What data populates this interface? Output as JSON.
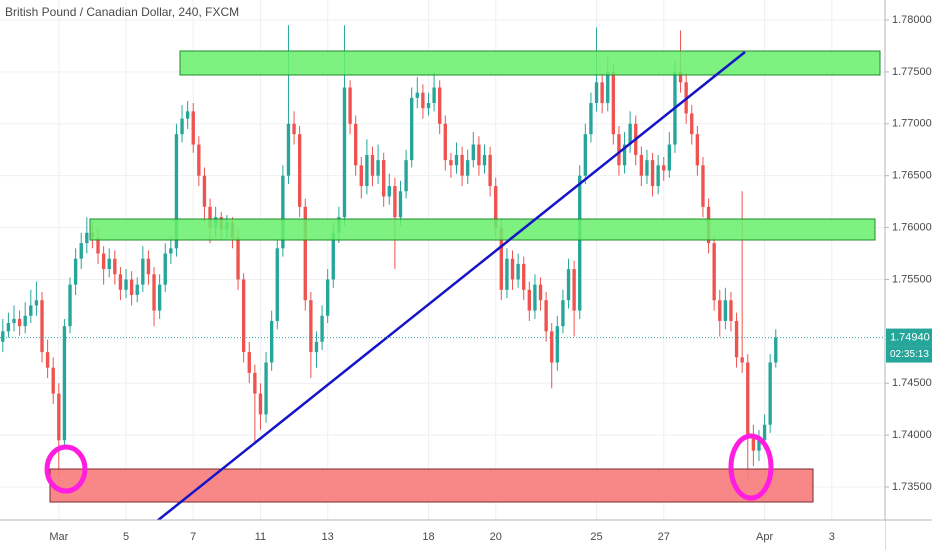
{
  "chart_data": {
    "type": "candlestick",
    "title": "British Pound / Canadian Dollar, 240, FXCM",
    "up_color": "#26a69a",
    "down_color": "#ef5350",
    "ylim": [
      1.73182,
      1.78193
    ],
    "yticks": [
      {
        "value": 1.78,
        "label": "1.78000"
      },
      {
        "value": 1.775,
        "label": "1.77500"
      },
      {
        "value": 1.77,
        "label": "1.77000"
      },
      {
        "value": 1.765,
        "label": "1.76500"
      },
      {
        "value": 1.76,
        "label": "1.76000"
      },
      {
        "value": 1.755,
        "label": "1.75500"
      },
      {
        "value": 1.745,
        "label": "1.74500"
      },
      {
        "value": 1.74,
        "label": "1.74000"
      },
      {
        "value": 1.735,
        "label": "1.73500"
      }
    ],
    "grid": true,
    "last_price": {
      "value": 1.7494,
      "label": "1.74940"
    },
    "countdown": "02:35:13",
    "categories": [
      null,
      null,
      null,
      null,
      null,
      null,
      null,
      null,
      null,
      null,
      "Mar",
      null,
      null,
      null,
      null,
      null,
      null,
      null,
      null,
      null,
      null,
      null,
      "5",
      null,
      null,
      null,
      null,
      null,
      null,
      null,
      null,
      null,
      null,
      null,
      "7",
      null,
      null,
      null,
      null,
      null,
      null,
      null,
      null,
      null,
      null,
      null,
      "11",
      null,
      null,
      null,
      null,
      null,
      null,
      null,
      null,
      null,
      null,
      null,
      "13",
      null,
      null,
      null,
      null,
      null,
      null,
      null,
      null,
      null,
      null,
      null,
      null,
      null,
      null,
      null,
      null,
      null,
      "18",
      null,
      null,
      null,
      null,
      null,
      null,
      null,
      null,
      null,
      null,
      null,
      "20",
      null,
      null,
      null,
      null,
      null,
      null,
      null,
      null,
      null,
      null,
      null,
      null,
      null,
      null,
      null,
      null,
      null,
      "25",
      null,
      null,
      null,
      null,
      null,
      null,
      null,
      null,
      null,
      null,
      null,
      "27",
      null,
      null,
      null,
      null,
      null,
      null,
      null,
      null,
      null,
      null,
      null,
      null,
      null,
      null,
      null,
      null,
      null,
      "Apr",
      null,
      null,
      null,
      null,
      null,
      null,
      null,
      null,
      null,
      null,
      null,
      "3",
      null,
      null,
      null,
      null,
      null,
      null,
      null,
      null,
      null
    ],
    "values": [
      [
        1.749,
        1.7512,
        1.748,
        1.75
      ],
      [
        1.75,
        1.7518,
        1.7494,
        1.7508
      ],
      [
        1.7508,
        1.7525,
        1.75,
        1.7512
      ],
      [
        1.7512,
        1.752,
        1.7496,
        1.7505
      ],
      [
        1.7505,
        1.7528,
        1.7498,
        1.7515
      ],
      [
        1.7515,
        1.754,
        1.7508,
        1.7525
      ],
      [
        1.7525,
        1.7548,
        1.7515,
        1.753
      ],
      [
        1.753,
        1.7538,
        1.747,
        1.748
      ],
      [
        1.748,
        1.7492,
        1.7455,
        1.7465
      ],
      [
        1.7465,
        1.7475,
        1.743,
        1.744
      ],
      [
        1.744,
        1.745,
        1.736,
        1.7395
      ],
      [
        1.7395,
        1.7512,
        1.7388,
        1.7505
      ],
      [
        1.7505,
        1.7552,
        1.7498,
        1.7545
      ],
      [
        1.7545,
        1.758,
        1.7535,
        1.757
      ],
      [
        1.757,
        1.7595,
        1.756,
        1.7585
      ],
      [
        1.7585,
        1.761,
        1.7575,
        1.7595
      ],
      [
        1.7595,
        1.7605,
        1.758,
        1.759
      ],
      [
        1.759,
        1.7598,
        1.7565,
        1.7575
      ],
      [
        1.7575,
        1.7582,
        1.7545,
        1.756
      ],
      [
        1.756,
        1.758,
        1.7552,
        1.757
      ],
      [
        1.757,
        1.7578,
        1.7545,
        1.7555
      ],
      [
        1.7555,
        1.7562,
        1.753,
        1.754
      ],
      [
        1.754,
        1.756,
        1.7532,
        1.755
      ],
      [
        1.755,
        1.7558,
        1.7525,
        1.7535
      ],
      [
        1.7535,
        1.7552,
        1.7528,
        1.7545
      ],
      [
        1.7545,
        1.7582,
        1.7538,
        1.757
      ],
      [
        1.757,
        1.7578,
        1.7545,
        1.7555
      ],
      [
        1.7555,
        1.7562,
        1.7505,
        1.752
      ],
      [
        1.752,
        1.7555,
        1.7512,
        1.7545
      ],
      [
        1.7545,
        1.7585,
        1.7538,
        1.7575
      ],
      [
        1.7575,
        1.7592,
        1.7565,
        1.758
      ],
      [
        1.758,
        1.77,
        1.7572,
        1.769
      ],
      [
        1.769,
        1.7718,
        1.7682,
        1.7705
      ],
      [
        1.7705,
        1.7722,
        1.7695,
        1.7712
      ],
      [
        1.7712,
        1.772,
        1.7672,
        1.768
      ],
      [
        1.768,
        1.7688,
        1.764,
        1.765
      ],
      [
        1.765,
        1.7658,
        1.7605,
        1.762
      ],
      [
        1.762,
        1.7628,
        1.7585,
        1.76
      ],
      [
        1.76,
        1.762,
        1.759,
        1.761
      ],
      [
        1.761,
        1.7615,
        1.7588,
        1.7598
      ],
      [
        1.7598,
        1.7612,
        1.759,
        1.7605
      ],
      [
        1.7605,
        1.761,
        1.758,
        1.759
      ],
      [
        1.759,
        1.7598,
        1.754,
        1.755
      ],
      [
        1.755,
        1.7556,
        1.747,
        1.748
      ],
      [
        1.748,
        1.749,
        1.745,
        1.746
      ],
      [
        1.746,
        1.7468,
        1.7393,
        1.744
      ],
      [
        1.744,
        1.745,
        1.7405,
        1.742
      ],
      [
        1.742,
        1.748,
        1.7412,
        1.747
      ],
      [
        1.747,
        1.752,
        1.7462,
        1.751
      ],
      [
        1.751,
        1.759,
        1.7502,
        1.758
      ],
      [
        1.758,
        1.766,
        1.7572,
        1.765
      ],
      [
        1.765,
        1.7795,
        1.7642,
        1.77
      ],
      [
        1.77,
        1.7712,
        1.768,
        1.769
      ],
      [
        1.769,
        1.7698,
        1.761,
        1.762
      ],
      [
        1.762,
        1.7628,
        1.752,
        1.753
      ],
      [
        1.753,
        1.7538,
        1.7455,
        1.748
      ],
      [
        1.748,
        1.75,
        1.7465,
        1.749
      ],
      [
        1.749,
        1.7525,
        1.7482,
        1.7515
      ],
      [
        1.7515,
        1.756,
        1.7508,
        1.755
      ],
      [
        1.755,
        1.7605,
        1.7542,
        1.7595
      ],
      [
        1.7595,
        1.762,
        1.7585,
        1.761
      ],
      [
        1.761,
        1.7795,
        1.7602,
        1.7735
      ],
      [
        1.7735,
        1.7742,
        1.769,
        1.77
      ],
      [
        1.77,
        1.7708,
        1.765,
        1.766
      ],
      [
        1.766,
        1.7668,
        1.7628,
        1.764
      ],
      [
        1.764,
        1.7685,
        1.7632,
        1.767
      ],
      [
        1.767,
        1.7678,
        1.764,
        1.765
      ],
      [
        1.765,
        1.768,
        1.7642,
        1.7665
      ],
      [
        1.7665,
        1.7672,
        1.762,
        1.763
      ],
      [
        1.763,
        1.7652,
        1.7622,
        1.764
      ],
      [
        1.764,
        1.7648,
        1.756,
        1.761
      ],
      [
        1.761,
        1.7645,
        1.7602,
        1.7635
      ],
      [
        1.7635,
        1.7675,
        1.7628,
        1.7665
      ],
      [
        1.7665,
        1.7735,
        1.7658,
        1.7725
      ],
      [
        1.7725,
        1.7745,
        1.7715,
        1.773
      ],
      [
        1.773,
        1.7738,
        1.7705,
        1.7715
      ],
      [
        1.7715,
        1.773,
        1.7708,
        1.772
      ],
      [
        1.772,
        1.775,
        1.7712,
        1.7735
      ],
      [
        1.7735,
        1.7742,
        1.769,
        1.77
      ],
      [
        1.77,
        1.7708,
        1.7655,
        1.7665
      ],
      [
        1.7665,
        1.7672,
        1.7648,
        1.766
      ],
      [
        1.766,
        1.7682,
        1.7652,
        1.767
      ],
      [
        1.767,
        1.7678,
        1.764,
        1.765
      ],
      [
        1.765,
        1.7675,
        1.7642,
        1.7665
      ],
      [
        1.7665,
        1.7692,
        1.7658,
        1.768
      ],
      [
        1.768,
        1.7688,
        1.765,
        1.766
      ],
      [
        1.766,
        1.768,
        1.7652,
        1.767
      ],
      [
        1.767,
        1.7678,
        1.763,
        1.764
      ],
      [
        1.764,
        1.7648,
        1.759,
        1.76
      ],
      [
        1.76,
        1.7608,
        1.753,
        1.754
      ],
      [
        1.754,
        1.758,
        1.7532,
        1.757
      ],
      [
        1.757,
        1.7578,
        1.754,
        1.755
      ],
      [
        1.755,
        1.7575,
        1.7542,
        1.7565
      ],
      [
        1.7565,
        1.7572,
        1.753,
        1.754
      ],
      [
        1.754,
        1.7548,
        1.751,
        1.752
      ],
      [
        1.752,
        1.7555,
        1.7512,
        1.7545
      ],
      [
        1.7545,
        1.7552,
        1.752,
        1.753
      ],
      [
        1.753,
        1.7538,
        1.749,
        1.75
      ],
      [
        1.75,
        1.7508,
        1.7445,
        1.747
      ],
      [
        1.747,
        1.7515,
        1.7462,
        1.7505
      ],
      [
        1.7505,
        1.754,
        1.7498,
        1.753
      ],
      [
        1.753,
        1.757,
        1.7522,
        1.756
      ],
      [
        1.756,
        1.7568,
        1.7495,
        1.752
      ],
      [
        1.752,
        1.766,
        1.7512,
        1.765
      ],
      [
        1.765,
        1.77,
        1.7642,
        1.769
      ],
      [
        1.769,
        1.773,
        1.7682,
        1.772
      ],
      [
        1.772,
        1.7793,
        1.7712,
        1.774
      ],
      [
        1.774,
        1.7748,
        1.771,
        1.772
      ],
      [
        1.772,
        1.7765,
        1.7712,
        1.775
      ],
      [
        1.775,
        1.7758,
        1.768,
        1.769
      ],
      [
        1.769,
        1.7698,
        1.765,
        1.766
      ],
      [
        1.766,
        1.7692,
        1.7652,
        1.768
      ],
      [
        1.768,
        1.7712,
        1.7672,
        1.77
      ],
      [
        1.77,
        1.7708,
        1.766,
        1.767
      ],
      [
        1.767,
        1.7678,
        1.764,
        1.765
      ],
      [
        1.765,
        1.7675,
        1.7642,
        1.7665
      ],
      [
        1.7665,
        1.7672,
        1.763,
        1.764
      ],
      [
        1.764,
        1.767,
        1.7632,
        1.766
      ],
      [
        1.766,
        1.7668,
        1.7645,
        1.7655
      ],
      [
        1.7655,
        1.7692,
        1.7648,
        1.768
      ],
      [
        1.768,
        1.776,
        1.7672,
        1.775
      ],
      [
        1.775,
        1.779,
        1.773,
        1.774
      ],
      [
        1.774,
        1.7748,
        1.77,
        1.771
      ],
      [
        1.771,
        1.7718,
        1.768,
        1.769
      ],
      [
        1.769,
        1.7698,
        1.765,
        1.766
      ],
      [
        1.766,
        1.7668,
        1.761,
        1.762
      ],
      [
        1.762,
        1.7628,
        1.7575,
        1.7585
      ],
      [
        1.7585,
        1.7592,
        1.752,
        1.753
      ],
      [
        1.753,
        1.754,
        1.7495,
        1.751
      ],
      [
        1.751,
        1.7542,
        1.7502,
        1.753
      ],
      [
        1.753,
        1.7538,
        1.75,
        1.751
      ],
      [
        1.751,
        1.7518,
        1.7465,
        1.7475
      ],
      [
        1.7475,
        1.7635,
        1.746,
        1.747
      ],
      [
        1.747,
        1.7478,
        1.7355,
        1.74
      ],
      [
        1.74,
        1.741,
        1.737,
        1.7385
      ],
      [
        1.7385,
        1.7405,
        1.7375,
        1.7395
      ],
      [
        1.7395,
        1.742,
        1.7388,
        1.741
      ],
      [
        1.741,
        1.7478,
        1.7402,
        1.747
      ],
      [
        1.747,
        1.7502,
        1.7465,
        1.7494
      ],
      null,
      null,
      null,
      null,
      null,
      null,
      null,
      null,
      null,
      null,
      null,
      null,
      null,
      null,
      null,
      null,
      null,
      null,
      null
    ]
  }
}
